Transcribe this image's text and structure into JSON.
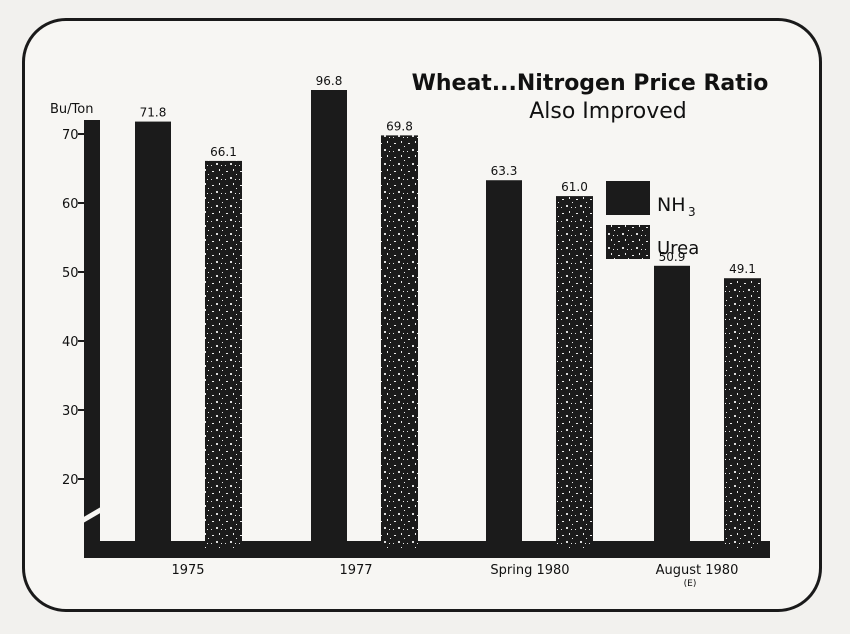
{
  "chart_data": {
    "type": "bar",
    "title_line1": "Wheat...Nitrogen Price Ratio",
    "title_line2": "Also Improved",
    "ylabel": "Bu/Ton",
    "ylim": [
      12,
      72
    ],
    "yticks": [
      "70",
      "60",
      "50",
      "40",
      "30",
      "20"
    ],
    "ytick_values": [
      70,
      60,
      50,
      40,
      30,
      20
    ],
    "categories": [
      "1975",
      "1977",
      "Spring 1980",
      "August 1980"
    ],
    "category_note": "(E)",
    "series": [
      {
        "name": "NH3",
        "values": [
          71.8,
          96.8,
          63.3,
          50.9
        ],
        "labels": [
          "71.8",
          "96.8",
          "63.3",
          "50.9"
        ],
        "color": "#1b1b1b"
      },
      {
        "name": "Urea",
        "values": [
          66.1,
          69.8,
          61.0,
          49.1
        ],
        "labels": [
          "66.1",
          "69.8",
          "61.0",
          "49.1"
        ],
        "color": "#1b1b1b"
      }
    ],
    "legend": {
      "nh3_label": "NH",
      "nh3_sub": "3",
      "urea_label": "Urea",
      "placement": "right"
    },
    "axis_break": true,
    "grid": false
  }
}
